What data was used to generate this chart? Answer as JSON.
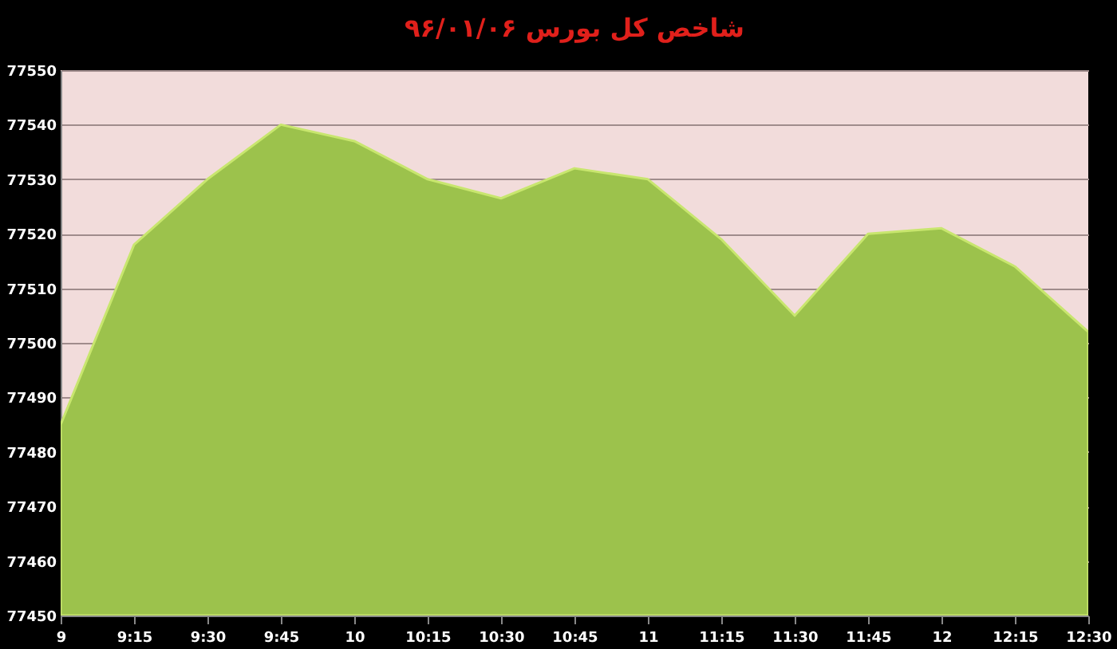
{
  "chart_data": {
    "type": "area",
    "title": "شاخص کل بورس ۹۶/۰۱/۰۶",
    "categories": [
      "9",
      "9:15",
      "9:30",
      "9:45",
      "10",
      "10:15",
      "10:30",
      "10:45",
      "11",
      "11:15",
      "11:30",
      "11:45",
      "12",
      "12:15",
      "12:30"
    ],
    "values": [
      77485,
      77518,
      77530,
      77540,
      77537,
      77530,
      77526.5,
      77532,
      77530,
      77519,
      77505,
      77520,
      77521,
      77514,
      77502
    ],
    "color": "#9cc24c",
    "ylim": [
      77450,
      77550
    ],
    "yticks": [
      77450,
      77460,
      77470,
      77480,
      77490,
      77500,
      77510,
      77520,
      77530,
      77540,
      77550
    ],
    "grid": "y"
  }
}
